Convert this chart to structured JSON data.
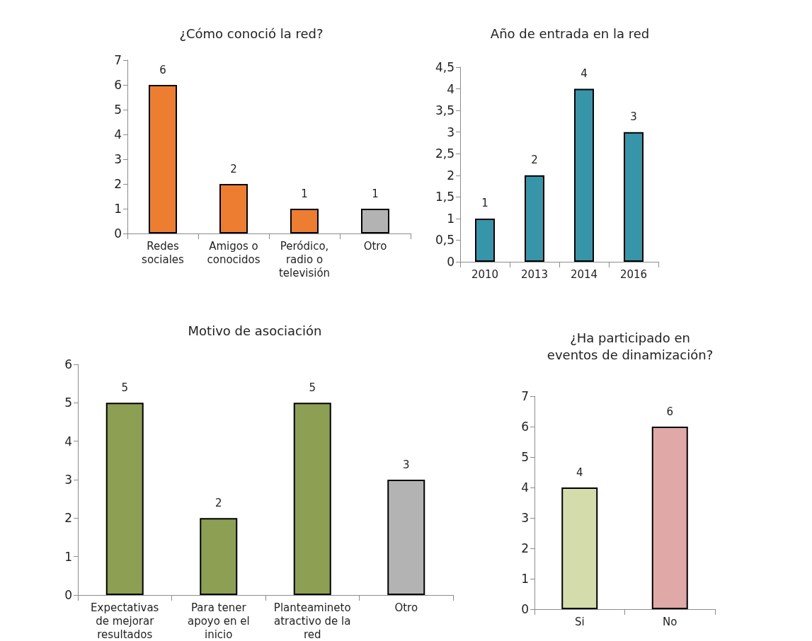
{
  "chart_data": [
    {
      "type": "bar",
      "title": "¿Cómo conoció la red?",
      "categories": [
        "Redes\nsociales",
        "Amigos o\nconocidos",
        "Peródico,\nradio o\ntelevisión",
        "Otro"
      ],
      "values": [
        6,
        2,
        1,
        1
      ],
      "colors": [
        "#ed7d31",
        "#ed7d31",
        "#ed7d31",
        "#b3b3b3"
      ],
      "ylim": [
        0,
        7
      ],
      "yticks": [
        0,
        1,
        2,
        3,
        4,
        5,
        6,
        7
      ],
      "data_labels": true,
      "grid": false
    },
    {
      "type": "bar",
      "title": "Año de entrada en la red",
      "categories": [
        "2010",
        "2013",
        "2014",
        "2016"
      ],
      "values": [
        1,
        2,
        4,
        3
      ],
      "colors": [
        "#3795aa",
        "#3795aa",
        "#3795aa",
        "#3795aa"
      ],
      "ylim": [
        0,
        4.5
      ],
      "yticks": [
        0,
        {
          "value": 0.5,
          "label": "0,5"
        },
        1,
        {
          "value": 1.5,
          "label": "1,5"
        },
        2,
        {
          "value": 2.5,
          "label": "2,5"
        },
        3,
        {
          "value": 3.5,
          "label": "3,5"
        },
        4,
        {
          "value": 4.5,
          "label": "4,5"
        }
      ],
      "data_labels": true,
      "grid": false
    },
    {
      "type": "bar",
      "title": "Motivo de asociación",
      "categories": [
        "Expectativas\nde mejorar\nresultados",
        "Para tener\napoyo en el\ninicio",
        "Planteamineto\natractivo de la\nred",
        "Otro"
      ],
      "values": [
        5,
        2,
        5,
        3
      ],
      "colors": [
        "#8c9f52",
        "#8c9f52",
        "#8c9f52",
        "#b3b3b3"
      ],
      "ylim": [
        0,
        6
      ],
      "yticks": [
        0,
        1,
        2,
        3,
        4,
        5,
        6
      ],
      "data_labels": true,
      "grid": false
    },
    {
      "type": "bar",
      "title": "¿Ha participado en\neventos de dinamización?",
      "categories": [
        "Si",
        "No"
      ],
      "values": [
        4,
        6
      ],
      "colors": [
        "#d3dcaa",
        "#e0a8a6"
      ],
      "ylim": [
        0,
        7
      ],
      "yticks": [
        0,
        1,
        2,
        3,
        4,
        5,
        6,
        7
      ],
      "data_labels": true,
      "grid": false
    }
  ]
}
